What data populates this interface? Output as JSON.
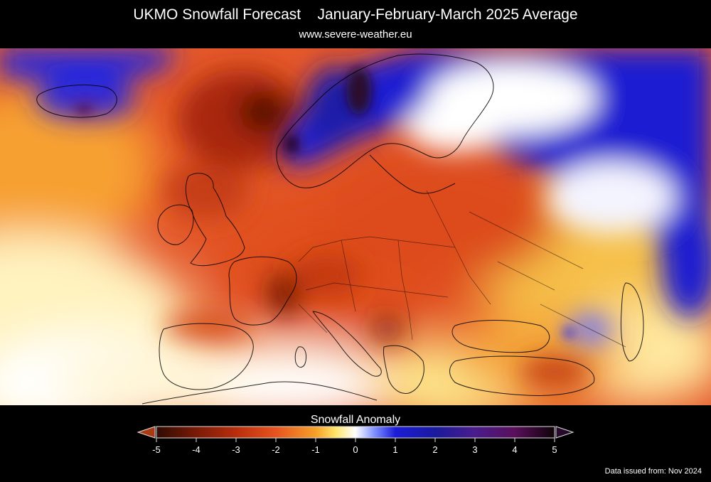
{
  "header": {
    "title": "UKMO Snowfall Forecast",
    "period": "January-February-March 2025 Average",
    "website": "www.severe-weather.eu"
  },
  "legend": {
    "title": "Snowfall Anomaly",
    "ticks": [
      "-5",
      "-4",
      "-3",
      "-2",
      "-1",
      "0",
      "1",
      "2",
      "3",
      "4",
      "5"
    ],
    "range": [
      -5,
      5
    ],
    "colors": {
      "minus5": "#2e0b02",
      "minus4": "#7a1a06",
      "minus3": "#b82e0c",
      "minus2": "#e6541f",
      "minus1": "#f7a028",
      "minus0_5": "#ffe56a",
      "zero": "#ffffff",
      "plus0_5": "#7a8cff",
      "plus1": "#1c1cd8",
      "plus2": "#1a1a9e",
      "plus3": "#4a1c8c",
      "plus4": "#5a0f5a",
      "plus5": "#0e0308",
      "land_border": "#000000"
    }
  },
  "footer": {
    "issued": "Data issued from: Nov 2024"
  }
}
